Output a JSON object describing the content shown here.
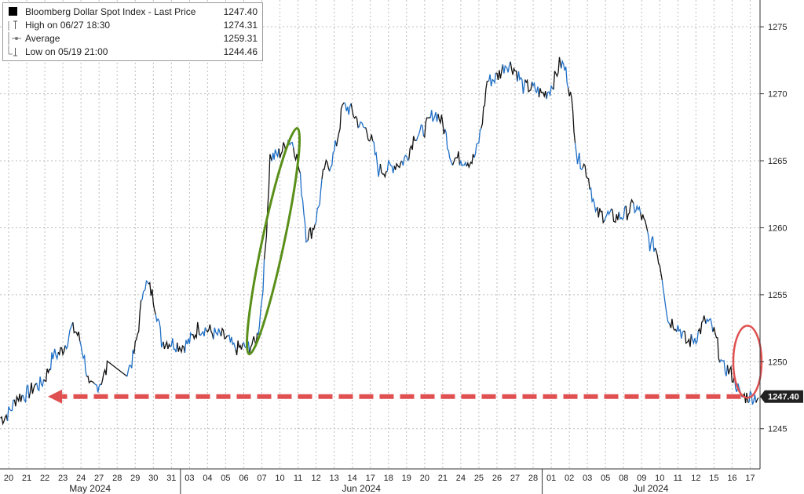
{
  "legend": {
    "title": "Bloomberg Dollar Spot Index - Last Price",
    "title_value": "1247.40",
    "high_label": "High on 06/27 18:30",
    "high_value": "1274.31",
    "avg_label": "Average",
    "avg_value": "1259.31",
    "low_label": "Low on 05/19 21:00",
    "low_value": "1244.46"
  },
  "last_price_tag": "1247.40",
  "colors": {
    "series_dark": "#111111",
    "series_blue": "#1f6fc6",
    "grid": "#bdbdbd",
    "green_annotation": "#5a8f1a",
    "red_annotation": "#e05050",
    "price_tag_bg": "#222222"
  },
  "chart_data": {
    "type": "line",
    "title": "Bloomberg Dollar Spot Index - Last Price",
    "ylim": [
      1242,
      1277
    ],
    "y_ticks": [
      1245,
      1250,
      1255,
      1260,
      1265,
      1270,
      1275
    ],
    "x_ticks": [
      "20",
      "21",
      "22",
      "23",
      "24",
      "27",
      "28",
      "29",
      "30",
      "31",
      "03",
      "04",
      "05",
      "06",
      "07",
      "10",
      "11",
      "12",
      "13",
      "14",
      "17",
      "18",
      "19",
      "20",
      "21",
      "24",
      "25",
      "26",
      "27",
      "28",
      "01",
      "02",
      "03",
      "05",
      "08",
      "09",
      "10",
      "11",
      "12",
      "15",
      "16",
      "17"
    ],
    "months": [
      "May 2024",
      "Jun 2024",
      "Jul 2024"
    ],
    "grid": true,
    "legend_position": "top-left",
    "series": [
      {
        "name": "Bloomberg Dollar Spot Index - Last Price",
        "x": [
          "20",
          "21",
          "22",
          "23",
          "24",
          "27",
          "29",
          "30",
          "31",
          "03",
          "04",
          "05",
          "06",
          "07",
          "10",
          "11",
          "12",
          "13",
          "14",
          "17",
          "18",
          "19",
          "20",
          "21",
          "24",
          "25",
          "26",
          "27",
          "28",
          "01",
          "02",
          "03",
          "05",
          "08",
          "09",
          "10",
          "11",
          "12",
          "15",
          "16",
          "17"
        ],
        "values": [
          1245.8,
          1247.4,
          1248.2,
          1250.5,
          1252.4,
          1248.0,
          1249.5,
          1255.8,
          1251.5,
          1251.2,
          1252.5,
          1252.0,
          1251.0,
          1251.3,
          1265.3,
          1266.5,
          1259.5,
          1264.5,
          1269.0,
          1267.5,
          1264.3,
          1264.8,
          1267.0,
          1268.5,
          1265.2,
          1265.0,
          1271.0,
          1272.2,
          1270.5,
          1270.0,
          1272.2,
          1265.0,
          1261.0,
          1260.8,
          1261.5,
          1258.8,
          1253.0,
          1251.5,
          1253.0,
          1249.5,
          1247.4
        ]
      }
    ],
    "annotations": [
      {
        "type": "ellipse",
        "color": "green",
        "around_x": [
          "07",
          "10"
        ]
      },
      {
        "type": "ellipse",
        "color": "red",
        "around_x": [
          "16",
          "17"
        ]
      },
      {
        "type": "dashed-arrow",
        "color": "red",
        "from_x": "17",
        "to_x": "22",
        "y": 1247.4
      }
    ]
  }
}
